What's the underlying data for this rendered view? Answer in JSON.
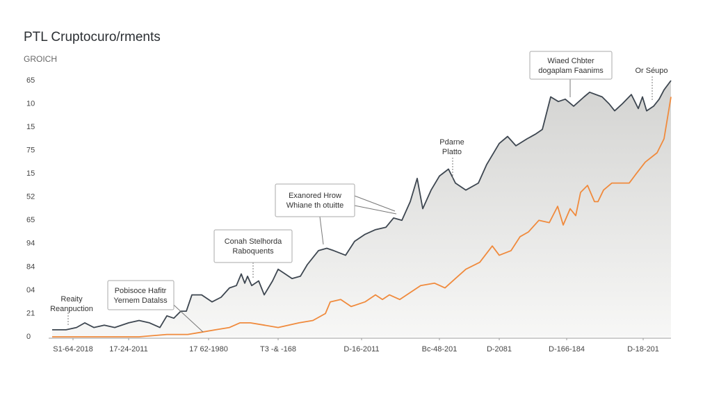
{
  "chart_data": {
    "type": "line",
    "title": "PTL Cruptocuro/rments",
    "subtitle": "GROICH",
    "xlim": [
      0,
      890
    ],
    "xticks": [
      {
        "value": 30,
        "label": "S1-64-2018"
      },
      {
        "value": 110,
        "label": "17-24-2011"
      },
      {
        "value": 225,
        "label": "17 62-1980"
      },
      {
        "value": 325,
        "label": "T3 -& -168"
      },
      {
        "value": 445,
        "label": "D-16-2011"
      },
      {
        "value": 557,
        "label": "Bc-48-201"
      },
      {
        "value": 643,
        "label": "D-2081"
      },
      {
        "value": 740,
        "label": "D-166-184"
      },
      {
        "value": 850,
        "label": "D-18-201"
      }
    ],
    "ylim": [
      0,
      11
    ],
    "yticks": [
      {
        "value": 0,
        "label": "0"
      },
      {
        "value": 1,
        "label": "21"
      },
      {
        "value": 2,
        "label": "04"
      },
      {
        "value": 3,
        "label": "84"
      },
      {
        "value": 4,
        "label": "94"
      },
      {
        "value": 5,
        "label": "65"
      },
      {
        "value": 6,
        "label": "52"
      },
      {
        "value": 7,
        "label": "15"
      },
      {
        "value": 8,
        "label": "75"
      },
      {
        "value": 9,
        "label": "15"
      },
      {
        "value": 10,
        "label": "10"
      },
      {
        "value": 11,
        "label": "65"
      }
    ],
    "grid": false,
    "series": [
      {
        "color": "#3d4650",
        "area": true,
        "x": [
          0,
          20,
          35,
          47,
          60,
          75,
          90,
          110,
          125,
          140,
          155,
          165,
          175,
          185,
          193,
          201,
          215,
          230,
          243,
          255,
          265,
          272,
          277,
          281,
          287,
          297,
          305,
          317,
          325,
          335,
          345,
          357,
          367,
          383,
          395,
          405,
          422,
          435,
          450,
          465,
          480,
          491,
          503,
          515,
          525,
          533,
          545,
          557,
          570,
          580,
          595,
          613,
          625,
          643,
          655,
          667,
          683,
          695,
          705,
          717,
          728,
          738,
          750,
          765,
          773,
          791,
          801,
          809,
          820,
          833,
          843,
          849,
          855,
          865,
          873,
          880,
          890
        ],
        "values": [
          0.3,
          0.3,
          0.4,
          0.6,
          0.4,
          0.5,
          0.4,
          0.6,
          0.7,
          0.6,
          0.4,
          0.9,
          0.8,
          1.1,
          1.1,
          1.8,
          1.8,
          1.5,
          1.7,
          2.1,
          2.2,
          2.7,
          2.3,
          2.6,
          2.2,
          2.4,
          1.8,
          2.4,
          2.9,
          2.7,
          2.5,
          2.6,
          3.1,
          3.7,
          3.8,
          3.7,
          3.5,
          4.1,
          4.4,
          4.6,
          4.7,
          5.1,
          5.0,
          5.8,
          6.8,
          5.5,
          6.3,
          6.9,
          7.2,
          6.6,
          6.3,
          6.6,
          7.4,
          8.3,
          8.6,
          8.2,
          8.5,
          8.7,
          8.9,
          10.3,
          10.1,
          10.2,
          9.9,
          10.3,
          10.5,
          10.3,
          10.0,
          9.7,
          10.0,
          10.4,
          9.8,
          10.3,
          9.7,
          9.9,
          10.2,
          10.6,
          11.0
        ]
      },
      {
        "color": "#f08a3c",
        "area": false,
        "x": [
          0,
          65,
          125,
          165,
          195,
          215,
          235,
          255,
          270,
          285,
          305,
          325,
          355,
          375,
          393,
          400,
          415,
          430,
          450,
          465,
          475,
          485,
          500,
          515,
          530,
          550,
          565,
          580,
          595,
          615,
          633,
          643,
          660,
          673,
          685,
          700,
          715,
          727,
          735,
          745,
          753,
          760,
          770,
          780,
          785,
          793,
          805,
          815,
          830,
          840,
          853,
          870,
          880,
          890
        ],
        "values": [
          0,
          0,
          0,
          0.1,
          0.1,
          0.2,
          0.3,
          0.4,
          0.6,
          0.6,
          0.5,
          0.4,
          0.6,
          0.7,
          1.0,
          1.5,
          1.6,
          1.3,
          1.5,
          1.8,
          1.6,
          1.8,
          1.6,
          1.9,
          2.2,
          2.3,
          2.1,
          2.5,
          2.9,
          3.2,
          3.9,
          3.5,
          3.7,
          4.3,
          4.5,
          5.0,
          4.9,
          5.6,
          4.8,
          5.5,
          5.2,
          6.2,
          6.5,
          5.8,
          5.8,
          6.3,
          6.6,
          6.6,
          6.6,
          7.0,
          7.5,
          7.9,
          8.5,
          10.3
        ]
      }
    ],
    "annotations": [
      {
        "text": [
          "Reaity",
          "Reanpuction"
        ],
        "boxed": false
      },
      {
        "text": [
          "Pobisoce Hafitr",
          "Yernem Datalss"
        ],
        "boxed": true
      },
      {
        "text": [
          "Conah Stelhorda",
          "Raboquents"
        ],
        "boxed": true
      },
      {
        "text": [
          "Exanored Hrow",
          "Whiane th otuitte"
        ],
        "boxed": true
      },
      {
        "text": [
          "Pdarne",
          "Platto"
        ],
        "boxed": false
      },
      {
        "text": [
          "Wiaed Chbter",
          "dogaplam Faanims"
        ],
        "boxed": true
      },
      {
        "text": [
          "Or Séupo"
        ],
        "boxed": false
      }
    ]
  }
}
